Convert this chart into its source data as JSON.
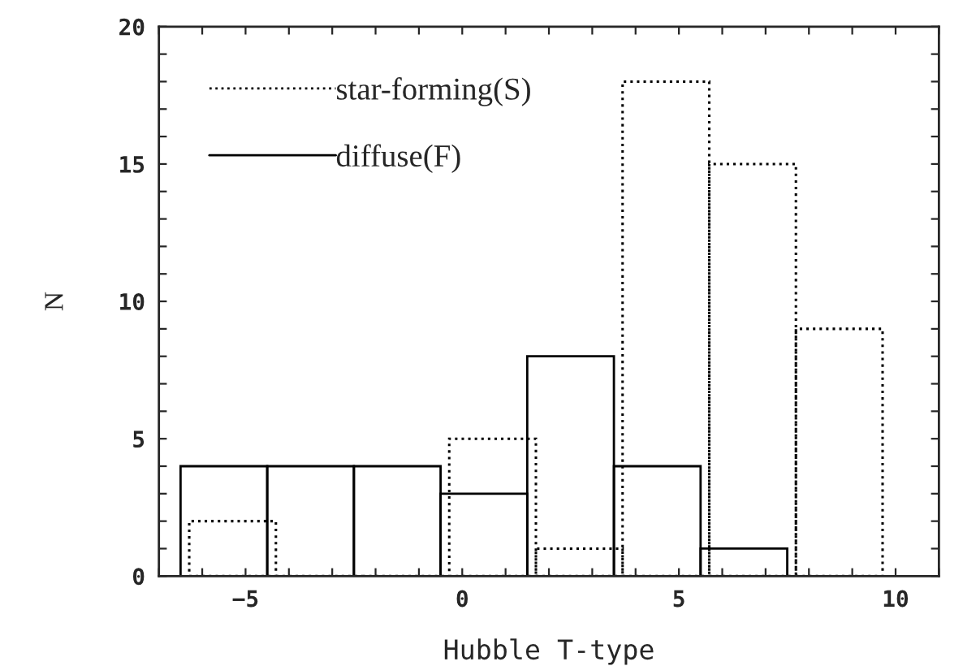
{
  "chart_data": {
    "type": "bar",
    "xlabel": "Hubble T-type",
    "ylabel": "N",
    "series": [
      {
        "name": "star-forming(S)",
        "color": "#000000",
        "line_style": "dotted",
        "x": [
          -5.3,
          -3.3,
          -1.3,
          0.7,
          2.7,
          4.7,
          6.7,
          8.7
        ],
        "values": [
          2,
          0,
          0,
          5,
          1,
          18,
          15,
          9
        ]
      },
      {
        "name": "diffuse(F)",
        "color": "#000000",
        "line_style": "solid",
        "x": [
          -5.5,
          -3.5,
          -1.5,
          0.5,
          2.5,
          4.5,
          6.5
        ],
        "values": [
          4,
          4,
          4,
          3,
          8,
          4,
          1
        ]
      }
    ],
    "xlim": [
      -7,
      11
    ],
    "xticks": [
      {
        "value": -7,
        "label": null
      },
      {
        "value": -6,
        "label": null
      },
      {
        "value": -5,
        "label": "−5"
      },
      {
        "value": -4,
        "label": null
      },
      {
        "value": -3,
        "label": null
      },
      {
        "value": -2,
        "label": null
      },
      {
        "value": -1,
        "label": null
      },
      0,
      {
        "value": 1,
        "label": null
      },
      {
        "value": 2,
        "label": null
      },
      {
        "value": 3,
        "label": null
      },
      {
        "value": 4,
        "label": null
      },
      5,
      {
        "value": 6,
        "label": null
      },
      {
        "value": 7,
        "label": null
      },
      {
        "value": 8,
        "label": null
      },
      {
        "value": 9,
        "label": null
      },
      10,
      {
        "value": 11,
        "label": null
      }
    ],
    "ylim": [
      0,
      20
    ],
    "yticks": [
      0,
      {
        "value": 1,
        "label": null
      },
      {
        "value": 2,
        "label": null
      },
      {
        "value": 3,
        "label": null
      },
      {
        "value": 4,
        "label": null
      },
      5,
      {
        "value": 6,
        "label": null
      },
      {
        "value": 7,
        "label": null
      },
      {
        "value": 8,
        "label": null
      },
      {
        "value": 9,
        "label": null
      },
      10,
      {
        "value": 11,
        "label": null
      },
      {
        "value": 12,
        "label": null
      },
      {
        "value": 13,
        "label": null
      },
      {
        "value": 14,
        "label": null
      },
      15,
      {
        "value": 16,
        "label": null
      },
      {
        "value": 17,
        "label": null
      },
      {
        "value": 18,
        "label": null
      },
      {
        "value": 19,
        "label": null
      },
      20
    ],
    "legend": "top left",
    "grid": false
  }
}
